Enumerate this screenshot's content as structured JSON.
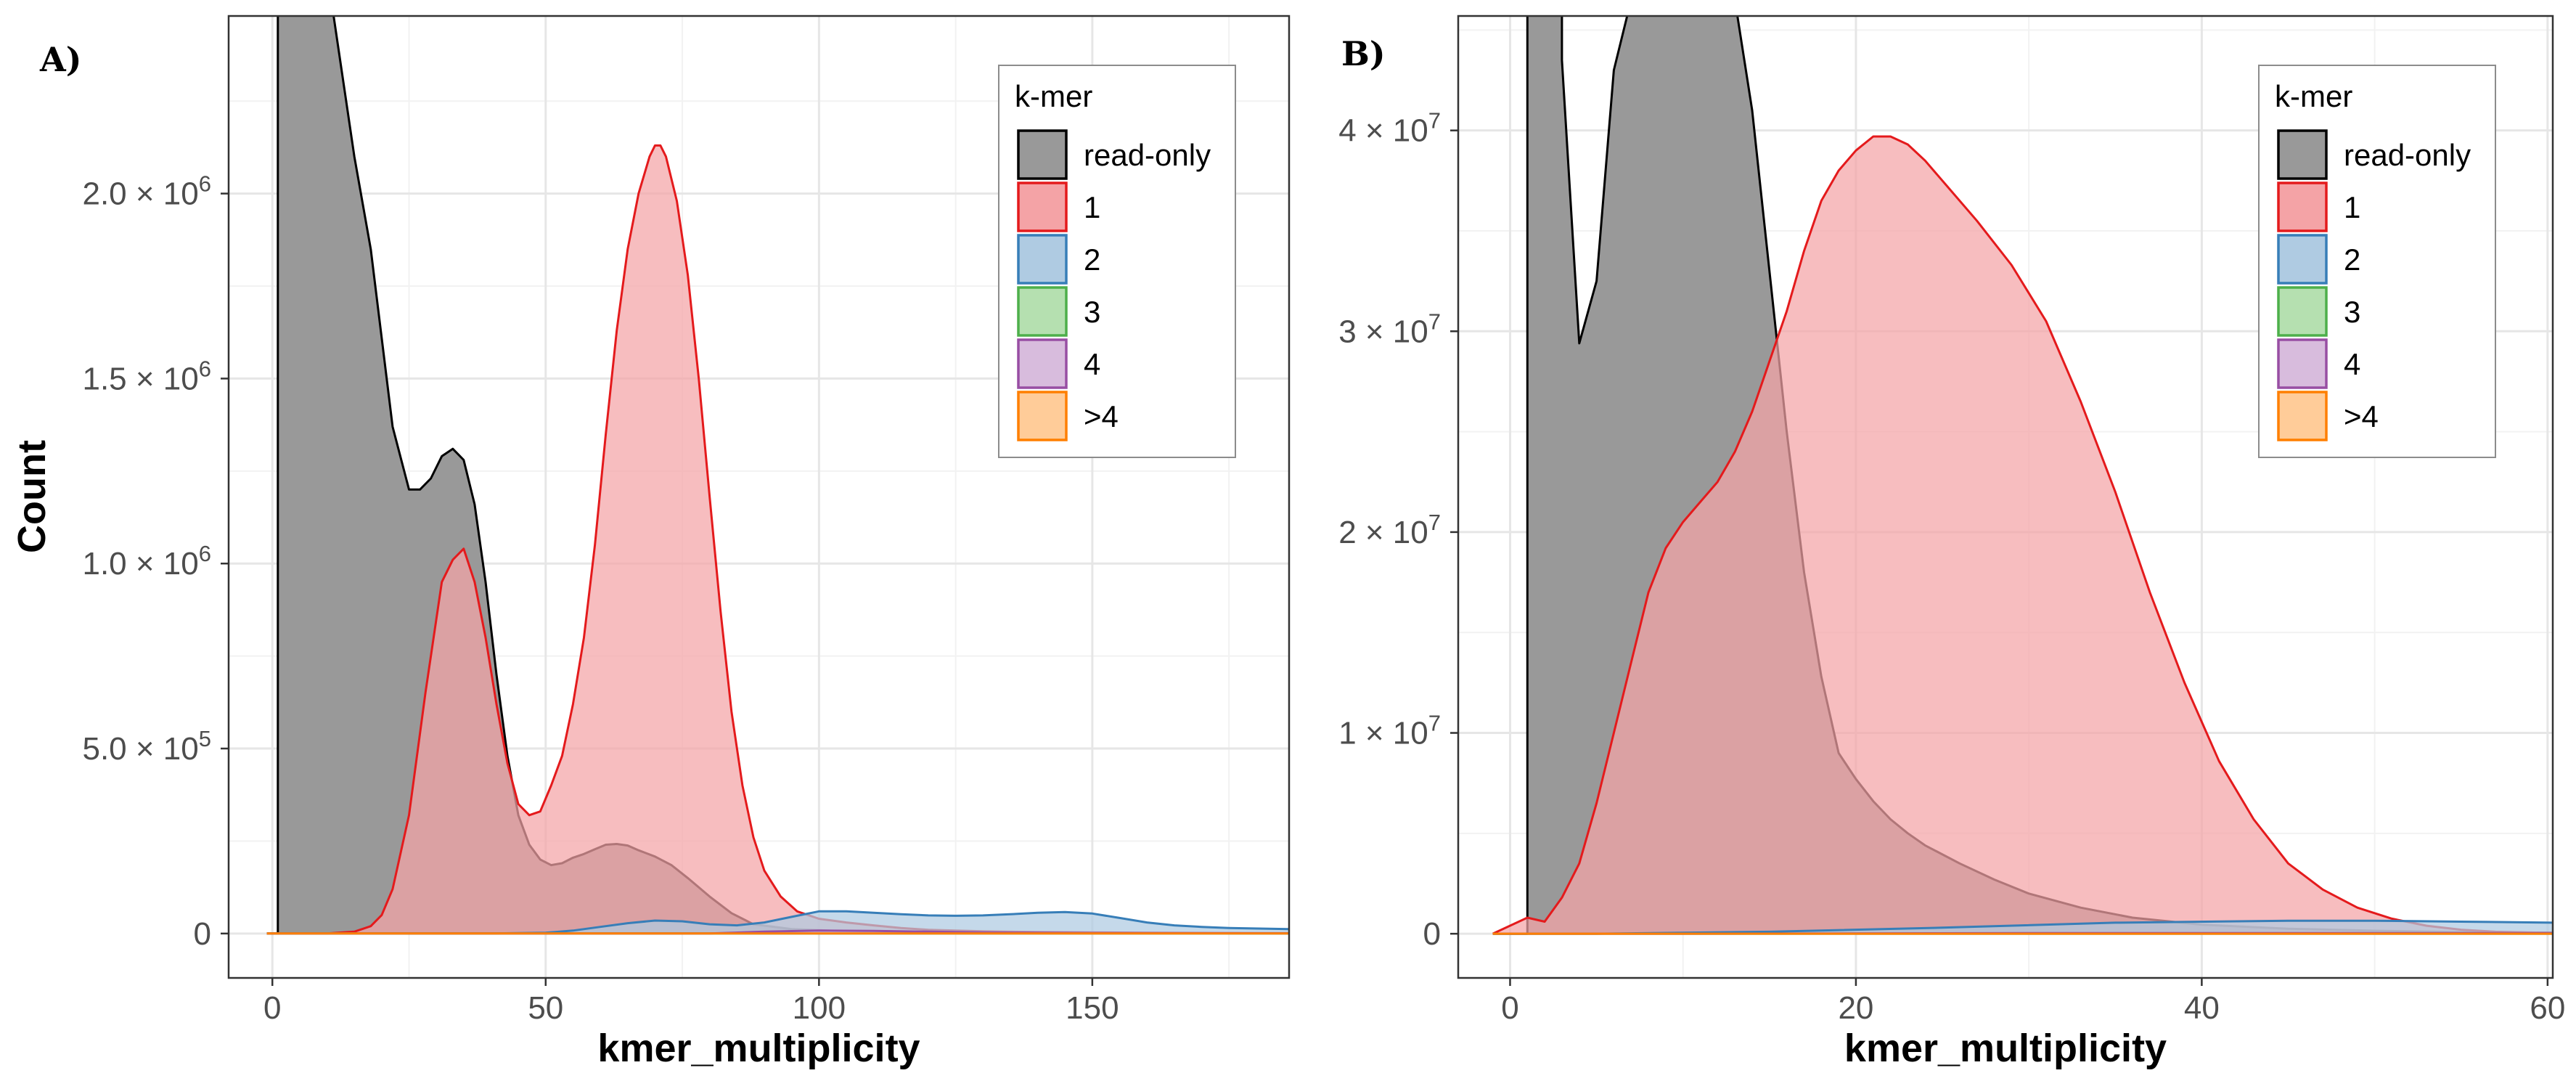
{
  "y_axis_title": "Count",
  "legend_title": "k-mer",
  "colors": {
    "read-only": {
      "fill": "#999999",
      "stroke": "#000000"
    },
    "1": {
      "fill": "#F4A3A6",
      "stroke": "#E41A1C"
    },
    "2": {
      "fill": "#AFCBE2",
      "stroke": "#377EB8"
    },
    "3": {
      "fill": "#B5E0B0",
      "stroke": "#4DAF4A"
    },
    "4": {
      "fill": "#D8BCDD",
      "stroke": "#984EA3"
    },
    ">4": {
      "fill": "#FFCC99",
      "stroke": "#FF7F00"
    }
  },
  "chart_data": [
    {
      "panel": "A)",
      "type": "area",
      "xlabel": "kmer_multiplicity",
      "ylabel": "Count",
      "xlim": [
        -8,
        186
      ],
      "ylim": [
        -120000,
        2480000
      ],
      "x_ticks": [
        0,
        50,
        100,
        150
      ],
      "x_tick_labels": [
        "0",
        "50",
        "100",
        "150"
      ],
      "y_ticks": [
        0,
        500000,
        1000000,
        1500000,
        2000000
      ],
      "y_tick_labels": [
        {
          "mant": "0",
          "exp": ""
        },
        {
          "mant": "5.0 × 10",
          "exp": "5"
        },
        {
          "mant": "1.0 × 10",
          "exp": "6"
        },
        {
          "mant": "1.5 × 10",
          "exp": "6"
        },
        {
          "mant": "2.0 × 10",
          "exp": "6"
        }
      ],
      "grid": true,
      "legend_position": "top-right",
      "series": [
        {
          "name": "read-only",
          "x": [
            -1,
            1,
            1,
            5,
            10,
            15,
            18,
            22,
            25,
            27,
            29,
            31,
            33,
            35,
            37,
            39,
            41,
            43,
            45,
            47,
            49,
            51,
            53,
            55,
            57,
            59,
            61,
            63,
            65,
            67,
            70,
            73,
            76,
            80,
            84,
            88,
            95,
            105,
            120,
            140,
            160,
            186
          ],
          "y": [
            0,
            0,
            2600000,
            2600000,
            2600000,
            2100000,
            1850000,
            1370000,
            1200000,
            1200000,
            1230000,
            1290000,
            1310000,
            1280000,
            1160000,
            950000,
            700000,
            480000,
            320000,
            240000,
            200000,
            185000,
            190000,
            205000,
            215000,
            228000,
            240000,
            242000,
            238000,
            225000,
            208000,
            185000,
            150000,
            100000,
            55000,
            25000,
            12000,
            6000,
            3000,
            1500,
            1000,
            600
          ]
        },
        {
          "name": "1",
          "x": [
            -1,
            5,
            10,
            15,
            18,
            20,
            22,
            25,
            28,
            31,
            33,
            35,
            37,
            39,
            41,
            43,
            45,
            47,
            49,
            51,
            53,
            55,
            57,
            59,
            61,
            63,
            65,
            67,
            69,
            70,
            71,
            72,
            74,
            76,
            78,
            80,
            82,
            84,
            86,
            88,
            90,
            93,
            96,
            100,
            105,
            110,
            115,
            120,
            130,
            140,
            150,
            160,
            186
          ],
          "y": [
            0,
            0,
            0,
            5000,
            20000,
            50000,
            120000,
            320000,
            650000,
            950000,
            1010000,
            1040000,
            950000,
            800000,
            620000,
            460000,
            350000,
            320000,
            330000,
            400000,
            480000,
            620000,
            800000,
            1050000,
            1350000,
            1630000,
            1850000,
            2000000,
            2100000,
            2130000,
            2130000,
            2100000,
            1980000,
            1780000,
            1500000,
            1180000,
            870000,
            600000,
            400000,
            260000,
            170000,
            100000,
            60000,
            40000,
            30000,
            22000,
            15000,
            10000,
            6000,
            4000,
            3000,
            2000,
            1000
          ]
        },
        {
          "name": "2",
          "x": [
            -1,
            40,
            50,
            55,
            60,
            65,
            70,
            75,
            80,
            85,
            90,
            95,
            100,
            105,
            110,
            115,
            120,
            125,
            130,
            135,
            140,
            145,
            150,
            155,
            160,
            165,
            170,
            175,
            186
          ],
          "y": [
            0,
            0,
            2000,
            8000,
            18000,
            28000,
            35000,
            33000,
            25000,
            22000,
            30000,
            45000,
            60000,
            60000,
            56000,
            52000,
            49000,
            48000,
            49000,
            52000,
            56000,
            58000,
            54000,
            42000,
            30000,
            22000,
            18000,
            15000,
            12000
          ]
        },
        {
          "name": "3",
          "x": [
            -1,
            10,
            50,
            100,
            150,
            186
          ],
          "y": [
            0,
            0,
            0,
            0,
            0,
            0
          ]
        },
        {
          "name": "4",
          "x": [
            -1,
            80,
            90,
            100,
            110,
            120,
            130,
            140,
            150,
            160,
            170,
            186
          ],
          "y": [
            0,
            0,
            5000,
            8000,
            7000,
            5000,
            3000,
            2000,
            1500,
            1000,
            800,
            500
          ]
        },
        {
          "name": ">4",
          "x": [
            -1,
            30,
            60,
            100,
            150,
            186
          ],
          "y": [
            0,
            0,
            0,
            0,
            0,
            0
          ]
        }
      ]
    },
    {
      "panel": "B)",
      "type": "area",
      "xlabel": "kmer_multiplicity",
      "ylabel": "",
      "xlim": [
        -3,
        60.3
      ],
      "ylim": [
        -2200000,
        45700000
      ],
      "x_ticks": [
        0,
        20,
        40,
        60
      ],
      "x_tick_labels": [
        "0",
        "20",
        "40",
        "60"
      ],
      "y_ticks": [
        0,
        10000000,
        20000000,
        30000000,
        40000000
      ],
      "y_tick_labels": [
        {
          "mant": "0",
          "exp": ""
        },
        {
          "mant": "1 × 10",
          "exp": "7"
        },
        {
          "mant": "2 × 10",
          "exp": "7"
        },
        {
          "mant": "3 × 10",
          "exp": "7"
        },
        {
          "mant": "4 × 10",
          "exp": "7"
        }
      ],
      "grid": true,
      "legend_position": "top-right",
      "series": [
        {
          "name": "read-only",
          "x": [
            -1,
            1,
            1,
            3,
            3,
            4,
            5,
            6,
            7,
            13,
            14,
            15,
            16,
            17,
            18,
            19,
            20,
            21,
            22,
            23,
            24,
            26,
            28,
            30,
            33,
            36,
            40,
            45,
            50,
            55,
            60.3
          ],
          "y": [
            0,
            0,
            46500000,
            46500000,
            43500000,
            29400000,
            32500000,
            43000000,
            46500000,
            46500000,
            41000000,
            33000000,
            25000000,
            18000000,
            12800000,
            9000000,
            7700000,
            6600000,
            5700000,
            5000000,
            4400000,
            3500000,
            2700000,
            2000000,
            1300000,
            800000,
            450000,
            250000,
            150000,
            80000,
            50000
          ]
        },
        {
          "name": "1",
          "x": [
            -1,
            1,
            2,
            3,
            4,
            5,
            6,
            7,
            8,
            9,
            10,
            11,
            12,
            13,
            14,
            15,
            16,
            17,
            18,
            19,
            20,
            21,
            22,
            23,
            24,
            25,
            27,
            29,
            31,
            33,
            35,
            37,
            39,
            41,
            43,
            45,
            47,
            49,
            51,
            53,
            55,
            57,
            60.3
          ],
          "y": [
            0,
            800000,
            600000,
            1800000,
            3500000,
            6500000,
            10000000,
            13500000,
            17000000,
            19200000,
            20500000,
            21500000,
            22500000,
            24000000,
            26000000,
            28500000,
            31000000,
            34000000,
            36500000,
            38000000,
            39000000,
            39700000,
            39700000,
            39300000,
            38500000,
            37500000,
            35500000,
            33300000,
            30500000,
            26500000,
            22000000,
            17000000,
            12500000,
            8600000,
            5700000,
            3500000,
            2200000,
            1300000,
            750000,
            400000,
            200000,
            100000,
            40000
          ]
        },
        {
          "name": "2",
          "x": [
            -1,
            5,
            15,
            25,
            35,
            45,
            50,
            55,
            60.3
          ],
          "y": [
            0,
            0,
            100000,
            300000,
            550000,
            650000,
            650000,
            600000,
            550000
          ]
        },
        {
          "name": "3",
          "x": [
            -1,
            5,
            30,
            60.3
          ],
          "y": [
            0,
            0,
            0,
            0
          ]
        },
        {
          "name": "4",
          "x": [
            -1,
            10,
            30,
            60.3
          ],
          "y": [
            0,
            0,
            30000,
            30000
          ]
        },
        {
          "name": ">4",
          "x": [
            -1,
            5,
            30,
            60.3
          ],
          "y": [
            0,
            0,
            0,
            0
          ]
        }
      ]
    }
  ]
}
